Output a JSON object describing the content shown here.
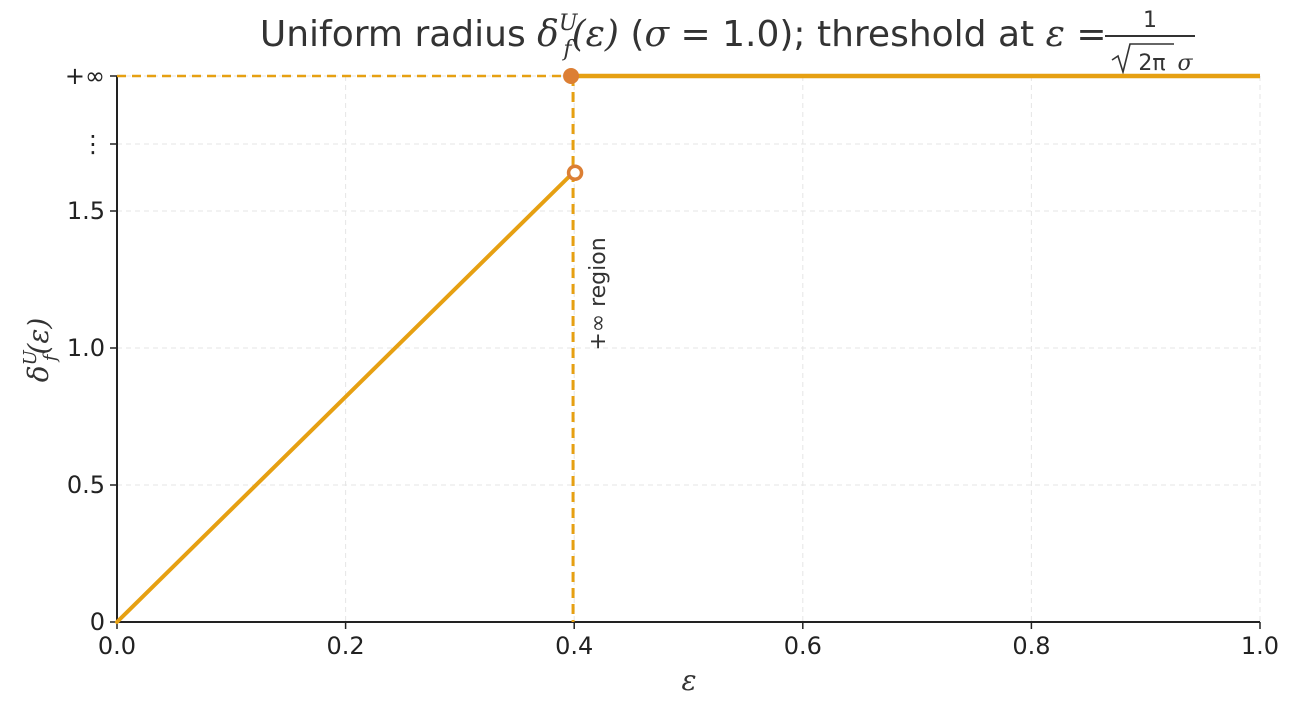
{
  "chart_data": {
    "type": "line",
    "title": {
      "prefix": "Uniform radius ",
      "delta": "δ",
      "sub": "f",
      "sup": "U",
      "arg": "(ε)",
      "mid": " (",
      "sigma_sym": "σ",
      "sigma_eq": " = 1.0); threshold at ",
      "eps": "ε",
      "eq": " = ",
      "frac_num": "1",
      "frac_den_sqrt": "2π",
      "frac_den_sigma": "σ"
    },
    "xlabel": "ε",
    "ylabel": {
      "delta": "δ",
      "sub": "f",
      "sup": "U",
      "arg": "(ε)"
    },
    "xlim": [
      0.0,
      1.0
    ],
    "xticks": [
      0.0,
      0.2,
      0.4,
      0.6,
      0.8,
      1.0
    ],
    "xtick_labels": [
      "0.0",
      "0.2",
      "0.4",
      "0.6",
      "0.8",
      "1.0"
    ],
    "yticks": [
      0,
      0.5,
      1.0,
      1.5
    ],
    "ytick_labels": [
      "0",
      "0.5",
      "1.0",
      "1.5"
    ],
    "ytick_extra": {
      "dots": "⋮",
      "inf": "+∞"
    },
    "grid": true,
    "threshold_x": 0.399,
    "linear_segment": {
      "x": [
        0.0,
        0.399
      ],
      "y": [
        0.0,
        1.6396
      ]
    },
    "infinite_segment": {
      "x": [
        0.399,
        1.0
      ],
      "y": "+∞"
    },
    "open_point": {
      "x": 0.399,
      "y": 1.6396
    },
    "closed_point": {
      "x": 0.399,
      "y": "+∞"
    },
    "annotation": "+∞ region",
    "colors": {
      "line": "#E6A012",
      "marker": "#DC7F34",
      "grid": "#e5e5e5",
      "axis": "#222222",
      "text": "#333333"
    }
  }
}
